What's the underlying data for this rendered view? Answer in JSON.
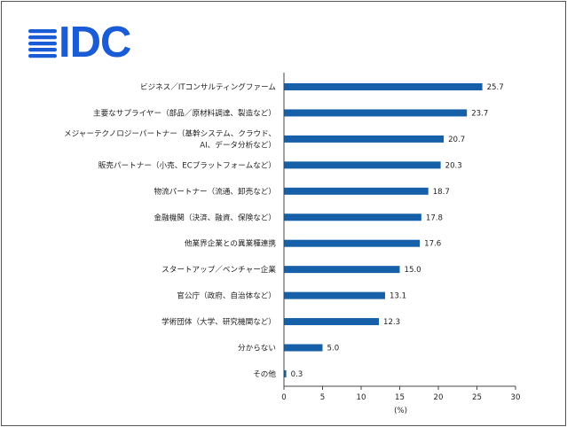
{
  "logo": {
    "text": "IDC",
    "brand_color": "#1a5bd6"
  },
  "chart_data": {
    "type": "bar",
    "orientation": "horizontal",
    "title": "",
    "xlabel": "(%)",
    "ylabel": "",
    "xlim": [
      0,
      30
    ],
    "xticks": [
      0,
      5,
      10,
      15,
      20,
      25,
      30
    ],
    "grid": false,
    "legend": "none",
    "bar_color": "#1560a8",
    "categories": [
      [
        "ビジネス／ITコンサルティングファーム"
      ],
      [
        "主要なサプライヤー（部品／原材料調達、製造など）"
      ],
      [
        "メジャーテクノロジーパートナー（基幹システム、クラウド、",
        "AI、データ分析など）"
      ],
      [
        "販売パートナー（小売、ECプラットフォームなど）"
      ],
      [
        "物流パートナー（流通、卸売など）"
      ],
      [
        "金融機関（決済、融資、保険など）"
      ],
      [
        "他業界企業との異業種連携"
      ],
      [
        "スタートアップ／ベンチャー企業"
      ],
      [
        "官公庁（政府、自治体など）"
      ],
      [
        "学術団体（大学、研究機関など）"
      ],
      [
        "分からない"
      ],
      [
        "その他"
      ]
    ],
    "values": [
      25.7,
      23.7,
      20.7,
      20.3,
      18.7,
      17.8,
      17.6,
      15.0,
      13.1,
      12.3,
      5.0,
      0.3
    ],
    "value_labels": [
      "25.7",
      "23.7",
      "20.7",
      "20.3",
      "18.7",
      "17.8",
      "17.6",
      "15.0",
      "13.1",
      "12.3",
      "5.0",
      "0.3"
    ]
  }
}
